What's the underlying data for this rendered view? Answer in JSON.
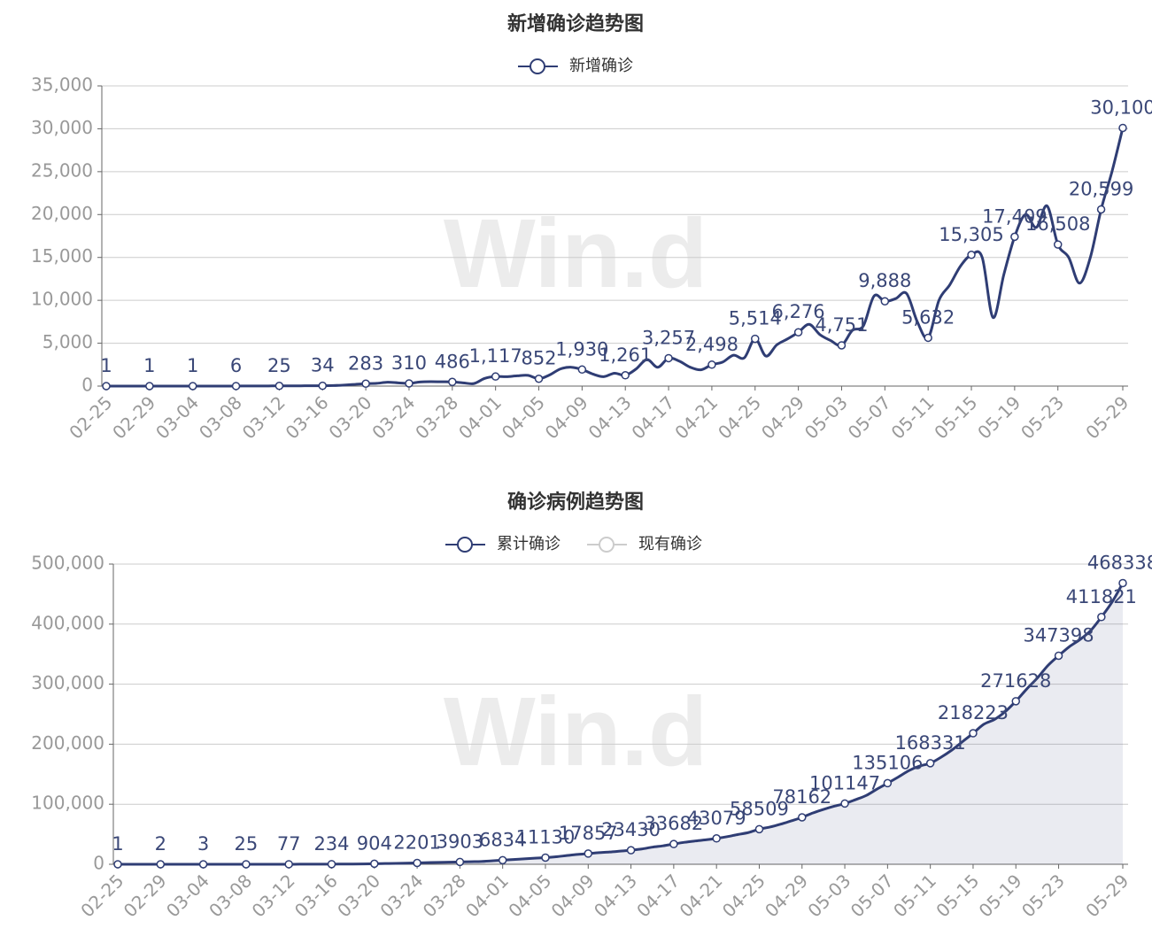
{
  "chart_data": [
    {
      "type": "line",
      "title": "新增确诊趋势图",
      "watermark": "Win.d",
      "categories": [
        "02-25",
        null,
        null,
        null,
        "02-29",
        null,
        null,
        null,
        "03-04",
        null,
        null,
        null,
        "03-08",
        null,
        null,
        null,
        "03-12",
        null,
        null,
        null,
        "03-16",
        null,
        null,
        null,
        "03-20",
        null,
        null,
        null,
        "03-24",
        null,
        null,
        null,
        "03-28",
        null,
        null,
        null,
        "04-01",
        null,
        null,
        null,
        "04-05",
        null,
        null,
        null,
        "04-09",
        null,
        null,
        null,
        "04-13",
        null,
        null,
        null,
        "04-17",
        null,
        null,
        null,
        "04-21",
        null,
        null,
        null,
        "04-25",
        null,
        null,
        null,
        "04-29",
        null,
        null,
        null,
        "05-03",
        null,
        null,
        null,
        "05-07",
        null,
        null,
        null,
        "05-11",
        null,
        null,
        null,
        "05-15",
        null,
        null,
        null,
        "05-19",
        null,
        null,
        null,
        "05-23",
        null,
        null,
        null,
        null,
        null,
        "05-29"
      ],
      "series": [
        {
          "name": "新增确诊",
          "color": "#2f3d74",
          "values": [
            1,
            1,
            1,
            1,
            1,
            1,
            2,
            1,
            1,
            2,
            3,
            5,
            6,
            10,
            12,
            18,
            25,
            20,
            30,
            40,
            34,
            60,
            120,
            200,
            283,
            320,
            450,
            380,
            310,
            480,
            520,
            500,
            486,
            380,
            300,
            900,
            1117,
            1100,
            1200,
            1250,
            852,
            1300,
            2000,
            2200,
            1930,
            1400,
            1100,
            1500,
            1261,
            2000,
            3100,
            2200,
            3257,
            2900,
            2200,
            1900,
            2498,
            2800,
            3600,
            3300,
            5514,
            3500,
            4800,
            5500,
            6276,
            7200,
            6000,
            5300,
            4751,
            6500,
            7000,
            10500,
            9888,
            10200,
            10800,
            7500,
            5632,
            10000,
            11800,
            14000,
            15305,
            15000,
            8000,
            13000,
            17409,
            20000,
            18500,
            21000,
            16508,
            15000,
            12000,
            15000,
            20599,
            25000,
            30100
          ],
          "value_labels": [
            "1",
            null,
            null,
            null,
            "1",
            null,
            null,
            null,
            "1",
            null,
            null,
            null,
            "6",
            null,
            null,
            null,
            "25",
            null,
            null,
            null,
            "34",
            null,
            null,
            null,
            "283",
            null,
            null,
            null,
            "310",
            null,
            null,
            null,
            "486",
            null,
            null,
            null,
            "1,117",
            null,
            null,
            null,
            "852",
            null,
            null,
            null,
            "1,930",
            null,
            null,
            null,
            "1,261",
            null,
            null,
            null,
            "3,257",
            null,
            null,
            null,
            "2,498",
            null,
            null,
            null,
            "5,514",
            null,
            null,
            null,
            "6,276",
            null,
            null,
            null,
            "4,751",
            null,
            null,
            null,
            "9,888",
            null,
            null,
            null,
            "5,632",
            null,
            null,
            null,
            "15,305",
            null,
            null,
            null,
            "17,409",
            null,
            null,
            null,
            "16,508",
            null,
            null,
            null,
            "20,599",
            null,
            "30,100"
          ]
        }
      ],
      "ylim": [
        0,
        35000
      ],
      "yticks": [
        0,
        {
          "value": 5000,
          "label": "5,000"
        },
        {
          "value": 10000,
          "label": "10,000"
        },
        {
          "value": 15000,
          "label": "15,000"
        },
        {
          "value": 20000,
          "label": "20,000"
        },
        {
          "value": 25000,
          "label": "25,000"
        },
        {
          "value": 30000,
          "label": "30,000"
        },
        {
          "value": 35000,
          "label": "35,000"
        }
      ],
      "grid": true,
      "smooth": true,
      "area": false,
      "legend": "top"
    },
    {
      "type": "line",
      "title": "确诊病例趋势图",
      "watermark": "Win.d",
      "categories": [
        "02-25",
        null,
        null,
        null,
        "02-29",
        null,
        null,
        null,
        "03-04",
        null,
        null,
        null,
        "03-08",
        null,
        null,
        null,
        "03-12",
        null,
        null,
        null,
        "03-16",
        null,
        null,
        null,
        "03-20",
        null,
        null,
        null,
        "03-24",
        null,
        null,
        null,
        "03-28",
        null,
        null,
        null,
        "04-01",
        null,
        null,
        null,
        "04-05",
        null,
        null,
        null,
        "04-09",
        null,
        null,
        null,
        "04-13",
        null,
        null,
        null,
        "04-17",
        null,
        null,
        null,
        "04-21",
        null,
        null,
        null,
        "04-25",
        null,
        null,
        null,
        "04-29",
        null,
        null,
        null,
        "05-03",
        null,
        null,
        null,
        "05-07",
        null,
        null,
        null,
        "05-11",
        null,
        null,
        null,
        "05-15",
        null,
        null,
        null,
        "05-19",
        null,
        null,
        null,
        "05-23",
        null,
        null,
        null,
        null,
        null,
        "05-29"
      ],
      "series": [
        {
          "name": "累计确诊",
          "color": "#2f3d74",
          "values": [
            1,
            1,
            1,
            2,
            2,
            2,
            2,
            3,
            3,
            5,
            8,
            15,
            25,
            35,
            45,
            60,
            77,
            100,
            140,
            190,
            234,
            320,
            450,
            620,
            904,
            1200,
            1500,
            1900,
            2201,
            2700,
            3200,
            3500,
            3903,
            4300,
            4600,
            5700,
            6834,
            7900,
            9100,
            10200,
            11130,
            12500,
            14500,
            16400,
            17857,
            19300,
            20400,
            21900,
            23430,
            25400,
            28500,
            30700,
            33682,
            36600,
            38800,
            40700,
            43079,
            46000,
            49600,
            52900,
            58509,
            62000,
            66800,
            72300,
            78162,
            85400,
            91400,
            96700,
            101147,
            107600,
            114600,
            125100,
            135106,
            145300,
            156100,
            163600,
            168331,
            178300,
            190100,
            204100,
            218223,
            233200,
            241200,
            254200,
            271628,
            291600,
            310100,
            331100,
            347398,
            362400,
            374400,
            389400,
            411821,
            436800,
            468338
          ]
        },
        {
          "name": "现有确诊",
          "color": "#cccccc",
          "hidden": true
        }
      ],
      "ylim": [
        0,
        500000
      ],
      "yticks": [
        0,
        {
          "value": 100000,
          "label": "100,000"
        },
        {
          "value": 200000,
          "label": "200,000"
        },
        {
          "value": 300000,
          "label": "300,000"
        },
        {
          "value": 400000,
          "label": "400,000"
        },
        {
          "value": 500000,
          "label": "500,000"
        }
      ],
      "grid": true,
      "smooth": true,
      "area": true,
      "legend": "top"
    }
  ]
}
